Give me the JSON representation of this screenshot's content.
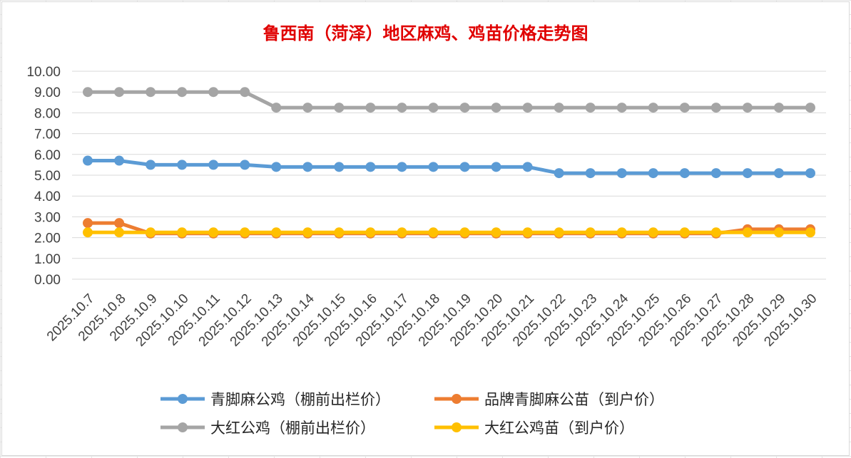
{
  "chart_data": {
    "type": "line",
    "title": "鲁西南（菏泽）地区麻鸡、鸡苗价格走势图",
    "xlabel": "",
    "ylabel": "",
    "ylim": [
      0,
      10
    ],
    "yticks": [
      "0.00",
      "1.00",
      "2.00",
      "3.00",
      "4.00",
      "5.00",
      "6.00",
      "7.00",
      "8.00",
      "9.00",
      "10.00"
    ],
    "grid": "horizontal",
    "legend_position": "bottom",
    "categories": [
      "2025.10.7",
      "2025.10.8",
      "2025.10.9",
      "2025.10.10",
      "2025.10.11",
      "2025.10.12",
      "2025.10.13",
      "2025.10.14",
      "2025.10.15",
      "2025.10.16",
      "2025.10.17",
      "2025.10.18",
      "2025.10.19",
      "2025.10.20",
      "2025.10.21",
      "2025.10.22",
      "2025.10.23",
      "2025.10.24",
      "2025.10.25",
      "2025.10.26",
      "2025.10.27",
      "2025.10.28",
      "2025.10.29",
      "2025.10.30"
    ],
    "series": [
      {
        "name": "青脚麻公鸡（棚前出栏价）",
        "color": "#5b9bd5",
        "values": [
          5.7,
          5.7,
          5.5,
          5.5,
          5.5,
          5.5,
          5.4,
          5.4,
          5.4,
          5.4,
          5.4,
          5.4,
          5.4,
          5.4,
          5.4,
          5.1,
          5.1,
          5.1,
          5.1,
          5.1,
          5.1,
          5.1,
          5.1,
          5.1
        ]
      },
      {
        "name": "品牌青脚麻公苗（到户价）",
        "color": "#ed7d31",
        "values": [
          2.7,
          2.7,
          2.2,
          2.2,
          2.2,
          2.2,
          2.2,
          2.2,
          2.2,
          2.2,
          2.2,
          2.2,
          2.2,
          2.2,
          2.2,
          2.2,
          2.2,
          2.2,
          2.2,
          2.2,
          2.2,
          2.4,
          2.4,
          2.4
        ]
      },
      {
        "name": "大红公鸡（棚前出栏价）",
        "color": "#a5a5a5",
        "values": [
          9.0,
          9.0,
          9.0,
          9.0,
          9.0,
          9.0,
          8.25,
          8.25,
          8.25,
          8.25,
          8.25,
          8.25,
          8.25,
          8.25,
          8.25,
          8.25,
          8.25,
          8.25,
          8.25,
          8.25,
          8.25,
          8.25,
          8.25,
          8.25
        ]
      },
      {
        "name": "大红公鸡苗（到户价）",
        "color": "#ffc000",
        "values": [
          2.25,
          2.25,
          2.25,
          2.25,
          2.25,
          2.25,
          2.25,
          2.25,
          2.25,
          2.25,
          2.25,
          2.25,
          2.25,
          2.25,
          2.25,
          2.25,
          2.25,
          2.25,
          2.25,
          2.25,
          2.25,
          2.25,
          2.25,
          2.25
        ]
      }
    ]
  }
}
